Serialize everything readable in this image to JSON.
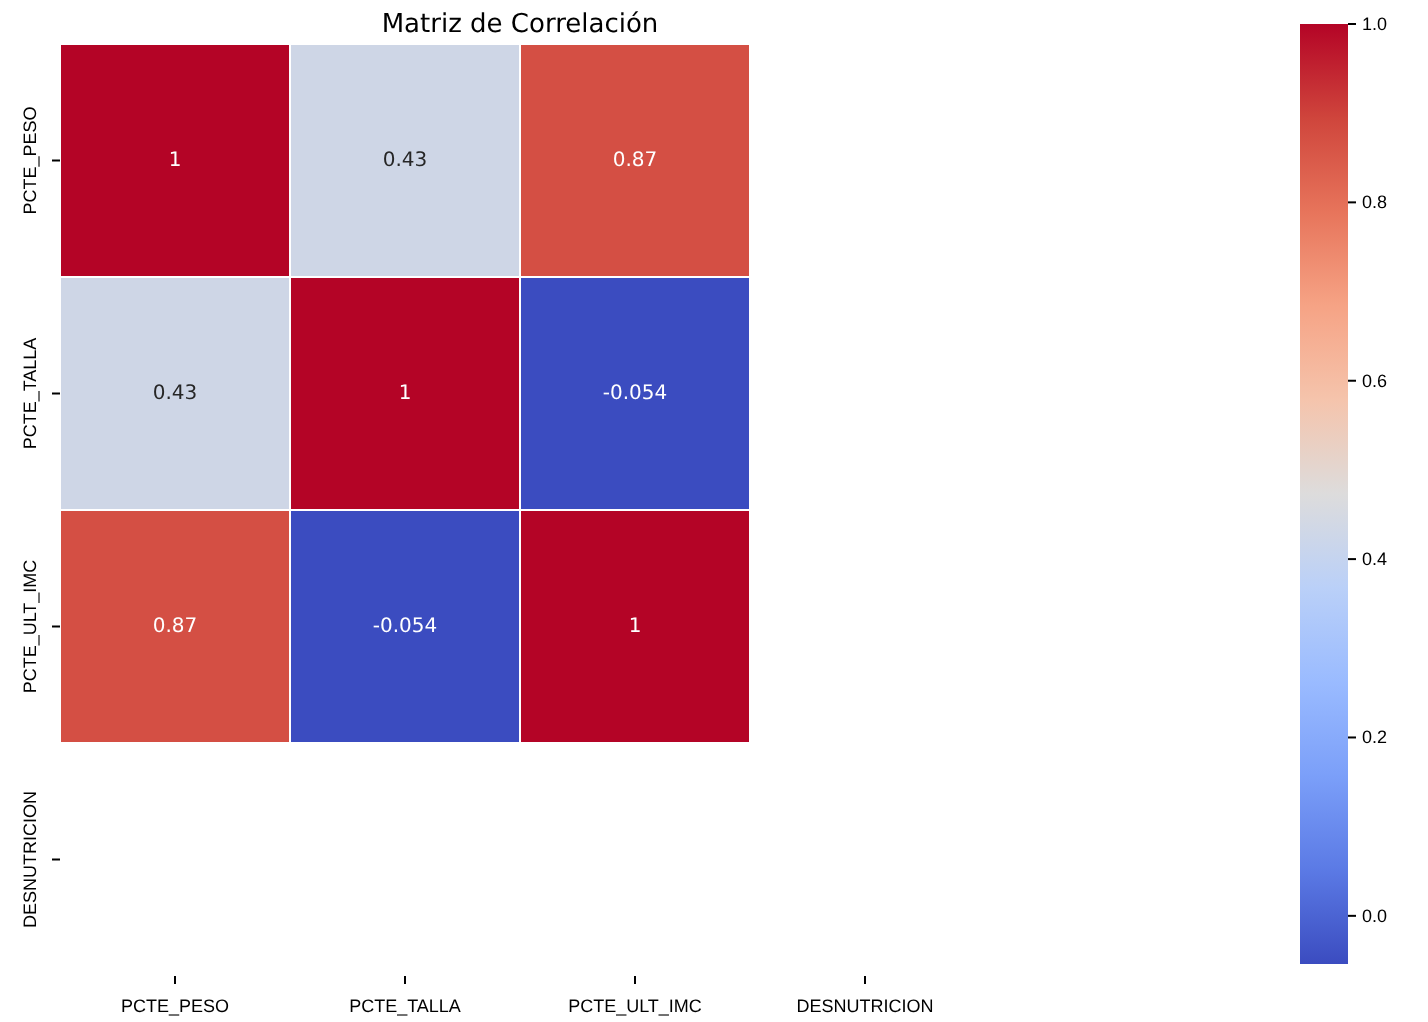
{
  "chart_data": {
    "type": "heatmap",
    "title": "Matriz de Correlación",
    "categories": [
      "PCTE_PESO",
      "PCTE_TALLA",
      "PCTE_ULT_IMC",
      "DESNUTRICION"
    ],
    "y_categories": [
      "PCTE_PESO",
      "PCTE_TALLA",
      "PCTE_ULT_IMC",
      "DESNUTRICION"
    ],
    "cells": [
      [
        1,
        0.43,
        0.87,
        null
      ],
      [
        0.43,
        1,
        -0.054,
        null
      ],
      [
        0.87,
        -0.054,
        1,
        null
      ],
      [
        null,
        null,
        null,
        null
      ]
    ],
    "clim": [
      -0.054,
      1
    ],
    "cticks": [
      {
        "value": 0,
        "label": "0.0"
      },
      {
        "value": 0.2,
        "label": "0.2"
      },
      {
        "value": 0.4,
        "label": "0.4"
      },
      {
        "value": 0.6,
        "label": "0.6"
      },
      {
        "value": 0.8,
        "label": "0.8"
      },
      {
        "value": 1,
        "label": "1.0"
      }
    ],
    "data_labels": true
  }
}
